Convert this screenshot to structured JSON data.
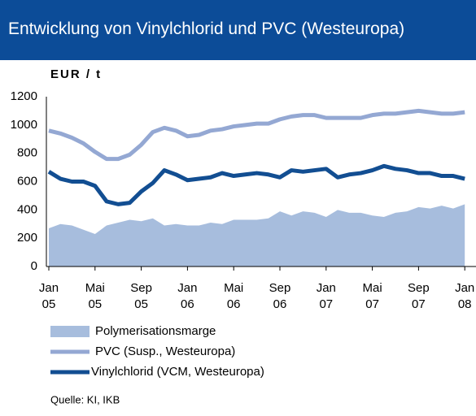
{
  "chart_data": {
    "type": "line",
    "title": "Entwicklung von Vinylchlorid und PVC (Westeuropa)",
    "unit_label": "EUR / t",
    "source": "Quelle: KI, IKB",
    "categories": [
      "Jan 05",
      null,
      null,
      null,
      "Mai 05",
      null,
      null,
      null,
      "Sep 05",
      null,
      null,
      null,
      "Jan 06",
      null,
      null,
      null,
      "Mai 06",
      null,
      null,
      null,
      "Sep 06",
      null,
      null,
      null,
      "Jan 07",
      null,
      null,
      null,
      "Mai 07",
      null,
      null,
      null,
      "Sep 07",
      null,
      null,
      null,
      "Jan 08"
    ],
    "ylim": [
      0,
      1200
    ],
    "yticks": [
      0,
      200,
      400,
      600,
      800,
      1000,
      1200
    ],
    "series": [
      {
        "name": "Polymerisationsmarge",
        "kind": "area",
        "color": "#a7bddd",
        "values": [
          270,
          300,
          290,
          260,
          230,
          290,
          310,
          330,
          320,
          340,
          290,
          300,
          290,
          290,
          310,
          300,
          330,
          330,
          330,
          340,
          390,
          360,
          390,
          380,
          350,
          400,
          380,
          380,
          360,
          350,
          380,
          390,
          420,
          410,
          430,
          410,
          440
        ]
      },
      {
        "name": "PVC (Susp., Westeuropa)",
        "kind": "line",
        "color": "#94a8d3",
        "values": [
          960,
          940,
          910,
          870,
          810,
          760,
          760,
          790,
          860,
          950,
          980,
          960,
          920,
          930,
          960,
          970,
          990,
          1000,
          1010,
          1010,
          1040,
          1060,
          1070,
          1070,
          1050,
          1050,
          1050,
          1050,
          1070,
          1080,
          1080,
          1090,
          1100,
          1090,
          1080,
          1080,
          1090
        ]
      },
      {
        "name": "Vinylchlorid (VCM, Westeuropa)",
        "kind": "line",
        "color": "#124e92",
        "values": [
          670,
          620,
          600,
          600,
          570,
          460,
          440,
          450,
          530,
          590,
          680,
          650,
          610,
          620,
          630,
          660,
          640,
          650,
          660,
          650,
          630,
          680,
          670,
          680,
          690,
          630,
          650,
          660,
          680,
          710,
          690,
          680,
          660,
          660,
          640,
          640,
          620
        ]
      }
    ]
  }
}
